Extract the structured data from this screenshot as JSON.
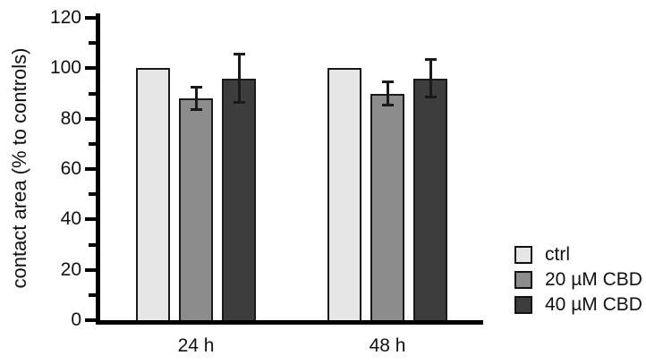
{
  "figure": {
    "background": "#ffffff"
  },
  "chart_data": {
    "type": "bar",
    "title": "",
    "ylabel": "contact area (% to controls)",
    "xlabel": "",
    "categories": [
      "24 h",
      "48 h"
    ],
    "series": [
      {
        "name": "ctrl",
        "color": "#e6e6e6",
        "values": [
          100,
          100
        ],
        "errors": [
          0,
          0
        ]
      },
      {
        "name": "20 µM CBD",
        "color": "#8c8c8c",
        "values": [
          88,
          90
        ],
        "errors": [
          5,
          5
        ]
      },
      {
        "name": "40 µM CBD",
        "color": "#3d3d3d",
        "values": [
          96,
          96
        ],
        "errors": [
          10,
          8
        ]
      }
    ],
    "ylim": [
      0,
      120
    ],
    "yticks_major": [
      0,
      20,
      40,
      60,
      80,
      100,
      120
    ],
    "yticks_minor": [
      10,
      30,
      50,
      70,
      90,
      110
    ],
    "grid": false,
    "legend_position": "right",
    "axis_color": "#000000",
    "bar_border_color": "#1a1a1a",
    "error_bar_color": "#1a1a1a"
  }
}
